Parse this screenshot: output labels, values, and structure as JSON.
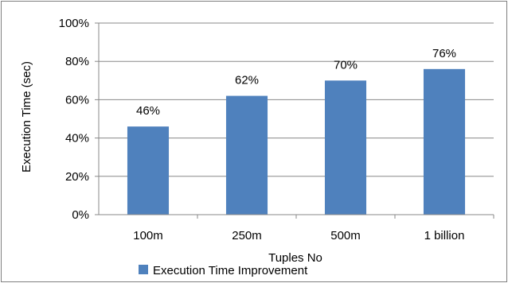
{
  "chart_data": {
    "type": "bar",
    "categories": [
      "100m",
      "250m",
      "500m",
      "1 billion"
    ],
    "series": [
      {
        "name": "Execution Time Improvement",
        "values": [
          46,
          62,
          70,
          76
        ],
        "data_labels": [
          "46%",
          "62%",
          "70%",
          "76%"
        ]
      }
    ],
    "xlabel": "Tuples No",
    "ylabel": "Execution Time (sec)",
    "ylim": [
      0,
      100
    ],
    "y_ticks": [
      0,
      20,
      40,
      60,
      80,
      100
    ],
    "y_tick_labels": [
      "0%",
      "20%",
      "40%",
      "60%",
      "80%",
      "100%"
    ],
    "grid": "horizontal",
    "legend_position": "bottom-center",
    "colors": {
      "bar": "#4f81bd",
      "grid": "#888888",
      "border": "#7f7f7f"
    }
  }
}
